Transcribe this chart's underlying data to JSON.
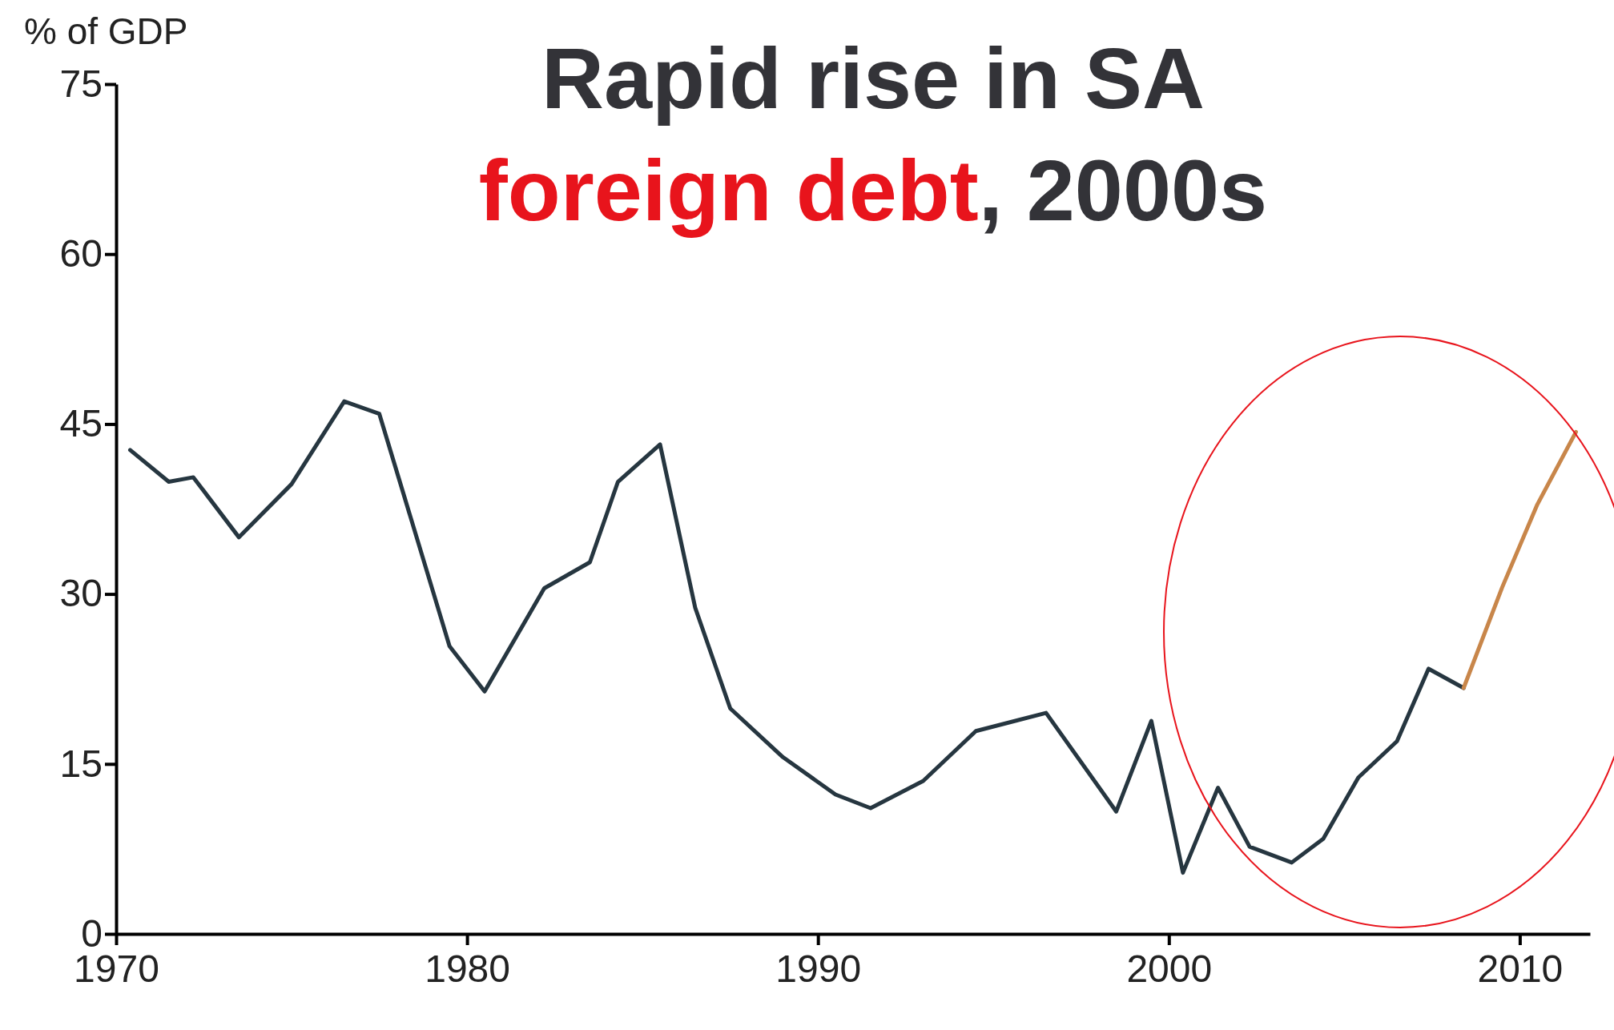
{
  "chart_data": {
    "type": "line",
    "title": "Rapid rise in SA foreign debt, 2000s",
    "ylabel": "% of GDP",
    "xlim": [
      1970,
      2012
    ],
    "xticks": [
      1970,
      1980,
      1990,
      2000,
      2010
    ],
    "ylim": [
      0,
      75
    ],
    "yticks": [
      0,
      15,
      30,
      45,
      60,
      75
    ],
    "grid": false,
    "marker": "none",
    "line_style": "solid",
    "series": [
      {
        "color": "#263640",
        "x": [
          1970.4,
          1971.5,
          1972.2,
          1973.5,
          1975,
          1976.5,
          1977.5,
          1979.5,
          1980.5,
          1982.2,
          1983.5,
          1984.3,
          1985.5,
          1986.5,
          1987.5,
          1989,
          1990.5,
          1991.5,
          1993,
          1994.5,
          1996.5,
          1998.5,
          1999.5,
          2000.4,
          2001.4,
          2002.3,
          2003.5,
          2004.4,
          2005.4,
          2006.5,
          2007.4,
          2008.4
        ],
        "values": [
          42.7,
          39.9,
          40.3,
          35,
          39.7,
          47,
          45.9,
          25.4,
          21.4,
          30.5,
          32.8,
          39.9,
          43.2,
          28.8,
          19.9,
          15.6,
          12.3,
          11.1,
          13.5,
          17.9,
          19.5,
          10.8,
          18.8,
          5.4,
          12.9,
          7.7,
          6.3,
          8.4,
          13.8,
          17,
          23.4,
          21.7
        ]
      },
      {
        "color": "#c8864a",
        "x": [
          2008.4,
          2009.5,
          2010.5,
          2011.6
        ],
        "values": [
          21.7,
          30.6,
          37.9,
          44.3
        ]
      }
    ]
  }
}
